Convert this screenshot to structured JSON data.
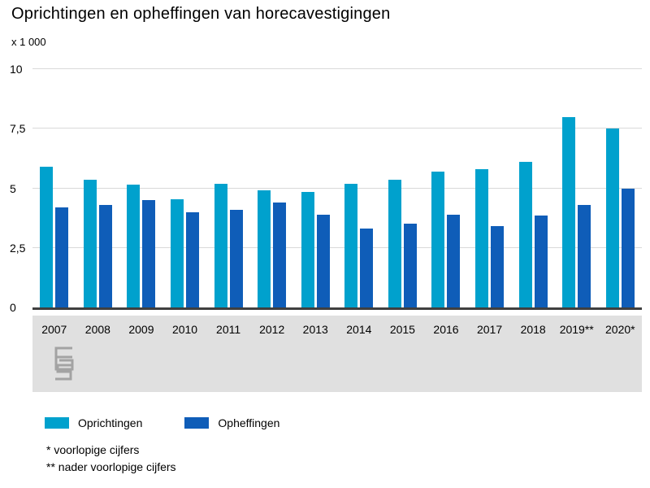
{
  "title": "Oprichtingen en opheffingen van horecavestigingen",
  "unit_label": "x 1 000",
  "colors": {
    "oprichtingen": "#00a1cd",
    "opheffingen": "#0f5db8",
    "grid": "#d9d9d9",
    "axis": "#3f3f3f",
    "band": "#e0e0e0"
  },
  "legend": [
    {
      "label": "Oprichtingen",
      "color": "#00a1cd"
    },
    {
      "label": "Opheffingen",
      "color": "#0f5db8"
    }
  ],
  "footnotes": [
    "* voorlopige cijfers",
    "** nader voorlopige cijfers"
  ],
  "chart_data": {
    "type": "bar",
    "title": "Oprichtingen en opheffingen van horecavestigingen",
    "xlabel": "",
    "ylabel": "x 1 000",
    "ylim": [
      0,
      10
    ],
    "yticks": [
      0,
      2.5,
      5,
      7.5,
      10
    ],
    "ytick_labels": [
      "0",
      "2,5",
      "5",
      "7,5",
      "10"
    ],
    "grid": true,
    "legend_position": "bottom",
    "categories": [
      "2007",
      "2008",
      "2009",
      "2010",
      "2011",
      "2012",
      "2013",
      "2014",
      "2015",
      "2016",
      "2017",
      "2018",
      "2019**",
      "2020*"
    ],
    "series": [
      {
        "name": "Oprichtingen",
        "color": "#00a1cd",
        "values": [
          5.9,
          5.35,
          5.15,
          4.55,
          5.2,
          4.9,
          4.85,
          5.2,
          5.35,
          5.7,
          5.8,
          6.1,
          8.0,
          7.5
        ]
      },
      {
        "name": "Opheffingen",
        "color": "#0f5db8",
        "values": [
          4.2,
          4.3,
          4.5,
          4.0,
          4.1,
          4.4,
          3.9,
          3.3,
          3.5,
          3.9,
          3.4,
          3.85,
          4.3,
          5.0
        ]
      }
    ]
  }
}
